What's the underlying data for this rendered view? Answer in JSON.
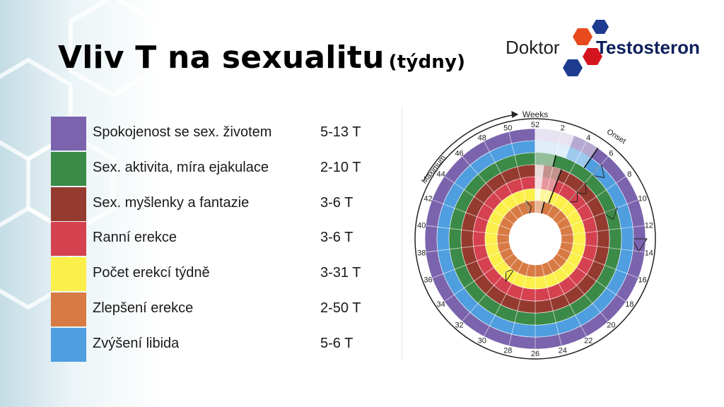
{
  "title": {
    "main": "Vliv T na sexualitu",
    "suffix": "(týdny)"
  },
  "logo": {
    "word1": "Doktor",
    "word2": "Testosteron",
    "hex_colors": [
      "#1f3b8f",
      "#e8491d",
      "#d4141e"
    ]
  },
  "legend": [
    {
      "label": "Spokojenost se sex. životem",
      "value": "5-13 T",
      "color": "#7b64ad"
    },
    {
      "label": "Sex. aktivita, míra ejakulace",
      "value": "2-10 T",
      "color": "#3c8a48"
    },
    {
      "label": "Sex. myšlenky a fantazie",
      "value": "3-6 T",
      "color": "#953a2f"
    },
    {
      "label": "Ranní erekce",
      "value": "3-6 T",
      "color": "#d5414f"
    },
    {
      "label": "Počet erekcí týdně",
      "value": "3-31 T",
      "color": "#fbf049"
    },
    {
      "label": "Zlepšení erekce",
      "value": "2-50 T",
      "color": "#d87a43"
    },
    {
      "label": "Zvýšení libida",
      "value": "5-6 T",
      "color": "#4f9ee0"
    }
  ],
  "diagram": {
    "axis_title": "Weeks",
    "arc_labels": {
      "onset": "Onset",
      "maximum": "Maximum"
    },
    "week_ticks": [
      "2",
      "4",
      "6",
      "8",
      "10",
      "12",
      "14",
      "16",
      "18",
      "20",
      "22",
      "24",
      "26",
      "28",
      "30",
      "32",
      "34",
      "36",
      "38",
      "40",
      "42",
      "44",
      "46",
      "48",
      "50",
      "52"
    ],
    "rings_outer_to_inner": [
      {
        "name": "Spokojenost se sex. životem",
        "color": "#7b64ad",
        "onset_week": 5,
        "max_week": 13
      },
      {
        "name": "Zvýšení libida",
        "color": "#4f9ee0",
        "onset_week": 5,
        "max_week": 6
      },
      {
        "name": "Sex. aktivita, míra ejakulace",
        "color": "#3c8a48",
        "onset_week": 2,
        "max_week": 10
      },
      {
        "name": "Sex. myšlenky a fantazie",
        "color": "#953a2f",
        "onset_week": 3,
        "max_week": 6
      },
      {
        "name": "Ranní erekce",
        "color": "#d5414f",
        "onset_week": 3,
        "max_week": 6
      },
      {
        "name": "Počet erekcí týdně",
        "color": "#fbf049",
        "onset_week": 3,
        "max_week": 31
      },
      {
        "name": "Zlepšení erekce",
        "color": "#d87a43",
        "onset_week": 2,
        "max_week": 50
      }
    ]
  }
}
